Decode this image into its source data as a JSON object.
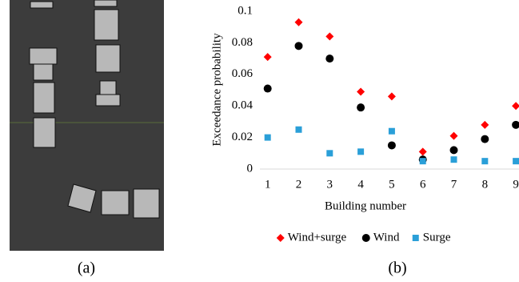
{
  "panel_labels": [
    "(a)",
    "(b)"
  ],
  "chart_data": {
    "type": "scatter",
    "x_label": "Building number",
    "y_label": "Exceedance probability",
    "x": [
      1,
      2,
      3,
      4,
      5,
      6,
      7,
      8,
      9
    ],
    "xlim": [
      0.75,
      9.1
    ],
    "xticks": [
      1,
      2,
      3,
      4,
      5,
      6,
      7,
      8,
      9
    ],
    "ylim": [
      0,
      0.1
    ],
    "yticks": [
      0,
      0.02,
      0.04,
      0.06,
      0.08,
      0.1
    ],
    "series": [
      {
        "name": "Wind+surge",
        "color": "#ff0000",
        "marker": "diamond",
        "values": [
          0.071,
          0.093,
          0.084,
          0.049,
          0.046,
          0.011,
          0.021,
          0.028,
          0.04
        ]
      },
      {
        "name": "Wind",
        "color": "#000000",
        "marker": "circle",
        "values": [
          0.051,
          0.078,
          0.07,
          0.039,
          0.015,
          0.006,
          0.012,
          0.019,
          0.028
        ]
      },
      {
        "name": "Surge",
        "color": "#2a9fd8",
        "marker": "square",
        "values": [
          0.02,
          0.025,
          0.01,
          0.011,
          0.024,
          0.005,
          0.006,
          0.005,
          0.005
        ]
      }
    ],
    "legend": "bottom"
  }
}
